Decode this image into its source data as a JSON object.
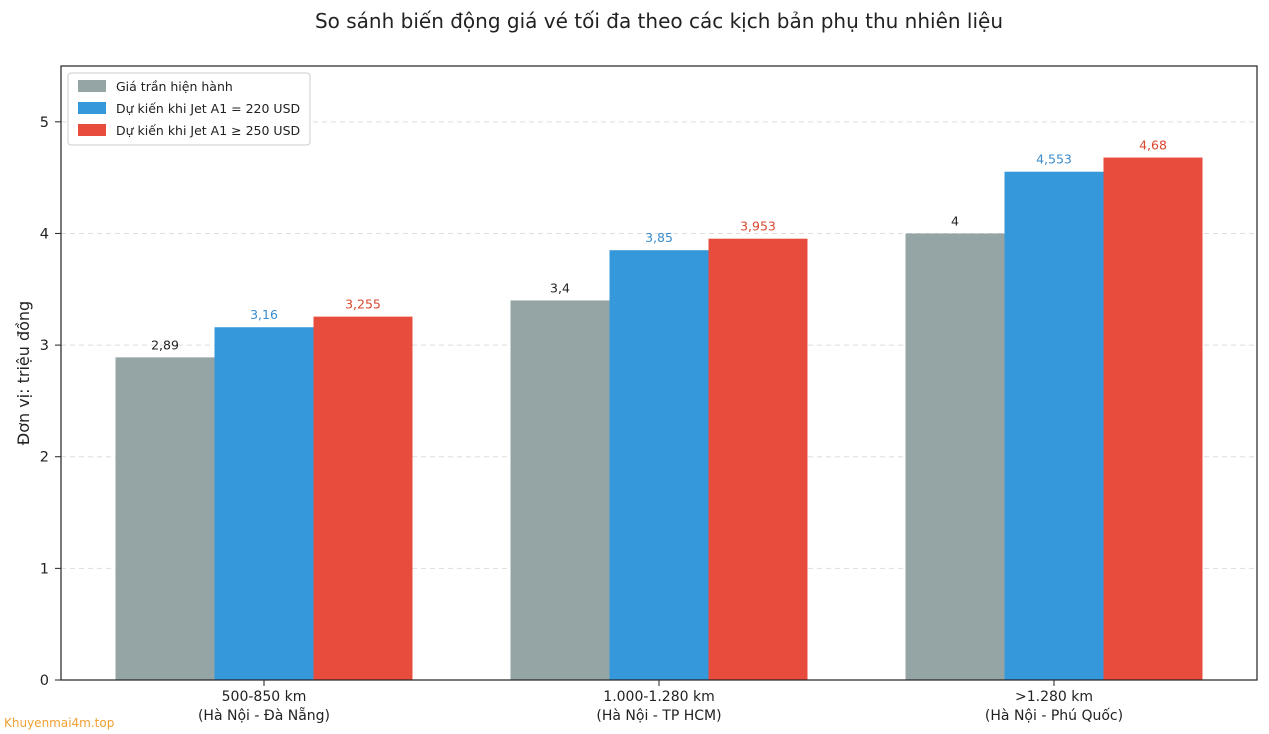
{
  "chart_data": {
    "type": "bar",
    "title": "So sánh biến động giá vé tối đa theo các kịch bản phụ thu nhiên liệu",
    "ylabel": "Đơn vị: triệu đồng",
    "xlabel": "",
    "ylim": [
      0,
      5.5
    ],
    "yticks": [
      "0",
      "1",
      "2",
      "3",
      "4",
      "5"
    ],
    "categories": [
      [
        "500-850 km",
        "(Hà Nội - Đà Nẵng)"
      ],
      [
        "1.000-1.280 km",
        "(Hà Nội - TP HCM)"
      ],
      [
        ">1.280 km",
        "(Hà Nội - Phú Quốc)"
      ]
    ],
    "series": [
      {
        "name": "Giá trần hiện hành",
        "color": "#95a5a6",
        "label_color": "#222222",
        "values": [
          2.89,
          3.4,
          4.0
        ],
        "labels": [
          "2,89",
          "3,4",
          "4"
        ]
      },
      {
        "name": "Dự kiến khi Jet A1 = 220 USD",
        "color": "#3498db",
        "label_color": "#3a8ccd",
        "values": [
          3.16,
          3.85,
          4.553
        ],
        "labels": [
          "3,16",
          "3,85",
          "4,553"
        ]
      },
      {
        "name": "Dự kiến khi Jet A1 ≥ 250 USD",
        "color": "#e74c3c",
        "label_color": "#d9472f",
        "values": [
          3.255,
          3.953,
          4.68
        ],
        "labels": [
          "3,255",
          "3,953",
          "4,68"
        ]
      }
    ],
    "grid": true,
    "legend_position": "top-left"
  },
  "watermark": "Khuyenmai4m.top"
}
